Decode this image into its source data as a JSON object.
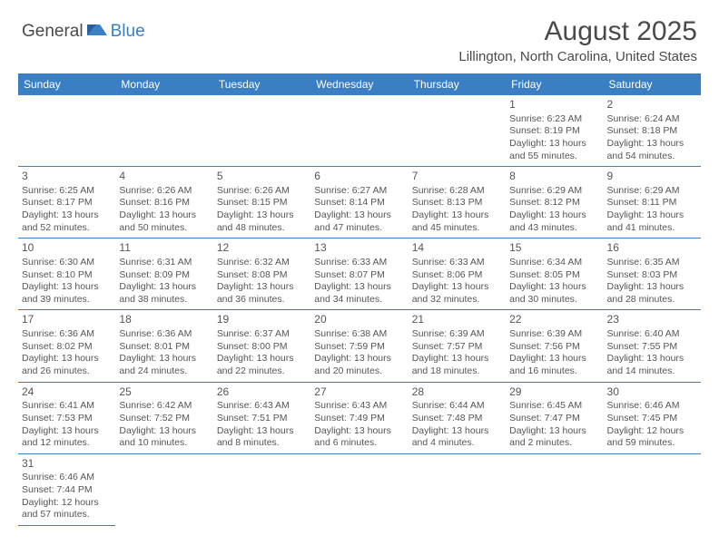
{
  "logo": {
    "text1": "General",
    "text2": "Blue"
  },
  "title": "August 2025",
  "location": "Lillington, North Carolina, United States",
  "colors": {
    "header_bg": "#3a7fc4",
    "border": "#3a7fc4",
    "text": "#4a4a4a"
  },
  "daynames": [
    "Sunday",
    "Monday",
    "Tuesday",
    "Wednesday",
    "Thursday",
    "Friday",
    "Saturday"
  ],
  "weeks": [
    [
      null,
      null,
      null,
      null,
      null,
      {
        "d": "1",
        "sr": "Sunrise: 6:23 AM",
        "ss": "Sunset: 8:19 PM",
        "dl1": "Daylight: 13 hours",
        "dl2": "and 55 minutes."
      },
      {
        "d": "2",
        "sr": "Sunrise: 6:24 AM",
        "ss": "Sunset: 8:18 PM",
        "dl1": "Daylight: 13 hours",
        "dl2": "and 54 minutes."
      }
    ],
    [
      {
        "d": "3",
        "sr": "Sunrise: 6:25 AM",
        "ss": "Sunset: 8:17 PM",
        "dl1": "Daylight: 13 hours",
        "dl2": "and 52 minutes."
      },
      {
        "d": "4",
        "sr": "Sunrise: 6:26 AM",
        "ss": "Sunset: 8:16 PM",
        "dl1": "Daylight: 13 hours",
        "dl2": "and 50 minutes."
      },
      {
        "d": "5",
        "sr": "Sunrise: 6:26 AM",
        "ss": "Sunset: 8:15 PM",
        "dl1": "Daylight: 13 hours",
        "dl2": "and 48 minutes."
      },
      {
        "d": "6",
        "sr": "Sunrise: 6:27 AM",
        "ss": "Sunset: 8:14 PM",
        "dl1": "Daylight: 13 hours",
        "dl2": "and 47 minutes."
      },
      {
        "d": "7",
        "sr": "Sunrise: 6:28 AM",
        "ss": "Sunset: 8:13 PM",
        "dl1": "Daylight: 13 hours",
        "dl2": "and 45 minutes."
      },
      {
        "d": "8",
        "sr": "Sunrise: 6:29 AM",
        "ss": "Sunset: 8:12 PM",
        "dl1": "Daylight: 13 hours",
        "dl2": "and 43 minutes."
      },
      {
        "d": "9",
        "sr": "Sunrise: 6:29 AM",
        "ss": "Sunset: 8:11 PM",
        "dl1": "Daylight: 13 hours",
        "dl2": "and 41 minutes."
      }
    ],
    [
      {
        "d": "10",
        "sr": "Sunrise: 6:30 AM",
        "ss": "Sunset: 8:10 PM",
        "dl1": "Daylight: 13 hours",
        "dl2": "and 39 minutes."
      },
      {
        "d": "11",
        "sr": "Sunrise: 6:31 AM",
        "ss": "Sunset: 8:09 PM",
        "dl1": "Daylight: 13 hours",
        "dl2": "and 38 minutes."
      },
      {
        "d": "12",
        "sr": "Sunrise: 6:32 AM",
        "ss": "Sunset: 8:08 PM",
        "dl1": "Daylight: 13 hours",
        "dl2": "and 36 minutes."
      },
      {
        "d": "13",
        "sr": "Sunrise: 6:33 AM",
        "ss": "Sunset: 8:07 PM",
        "dl1": "Daylight: 13 hours",
        "dl2": "and 34 minutes."
      },
      {
        "d": "14",
        "sr": "Sunrise: 6:33 AM",
        "ss": "Sunset: 8:06 PM",
        "dl1": "Daylight: 13 hours",
        "dl2": "and 32 minutes."
      },
      {
        "d": "15",
        "sr": "Sunrise: 6:34 AM",
        "ss": "Sunset: 8:05 PM",
        "dl1": "Daylight: 13 hours",
        "dl2": "and 30 minutes."
      },
      {
        "d": "16",
        "sr": "Sunrise: 6:35 AM",
        "ss": "Sunset: 8:03 PM",
        "dl1": "Daylight: 13 hours",
        "dl2": "and 28 minutes."
      }
    ],
    [
      {
        "d": "17",
        "sr": "Sunrise: 6:36 AM",
        "ss": "Sunset: 8:02 PM",
        "dl1": "Daylight: 13 hours",
        "dl2": "and 26 minutes."
      },
      {
        "d": "18",
        "sr": "Sunrise: 6:36 AM",
        "ss": "Sunset: 8:01 PM",
        "dl1": "Daylight: 13 hours",
        "dl2": "and 24 minutes."
      },
      {
        "d": "19",
        "sr": "Sunrise: 6:37 AM",
        "ss": "Sunset: 8:00 PM",
        "dl1": "Daylight: 13 hours",
        "dl2": "and 22 minutes."
      },
      {
        "d": "20",
        "sr": "Sunrise: 6:38 AM",
        "ss": "Sunset: 7:59 PM",
        "dl1": "Daylight: 13 hours",
        "dl2": "and 20 minutes."
      },
      {
        "d": "21",
        "sr": "Sunrise: 6:39 AM",
        "ss": "Sunset: 7:57 PM",
        "dl1": "Daylight: 13 hours",
        "dl2": "and 18 minutes."
      },
      {
        "d": "22",
        "sr": "Sunrise: 6:39 AM",
        "ss": "Sunset: 7:56 PM",
        "dl1": "Daylight: 13 hours",
        "dl2": "and 16 minutes."
      },
      {
        "d": "23",
        "sr": "Sunrise: 6:40 AM",
        "ss": "Sunset: 7:55 PM",
        "dl1": "Daylight: 13 hours",
        "dl2": "and 14 minutes."
      }
    ],
    [
      {
        "d": "24",
        "sr": "Sunrise: 6:41 AM",
        "ss": "Sunset: 7:53 PM",
        "dl1": "Daylight: 13 hours",
        "dl2": "and 12 minutes."
      },
      {
        "d": "25",
        "sr": "Sunrise: 6:42 AM",
        "ss": "Sunset: 7:52 PM",
        "dl1": "Daylight: 13 hours",
        "dl2": "and 10 minutes."
      },
      {
        "d": "26",
        "sr": "Sunrise: 6:43 AM",
        "ss": "Sunset: 7:51 PM",
        "dl1": "Daylight: 13 hours",
        "dl2": "and 8 minutes."
      },
      {
        "d": "27",
        "sr": "Sunrise: 6:43 AM",
        "ss": "Sunset: 7:49 PM",
        "dl1": "Daylight: 13 hours",
        "dl2": "and 6 minutes."
      },
      {
        "d": "28",
        "sr": "Sunrise: 6:44 AM",
        "ss": "Sunset: 7:48 PM",
        "dl1": "Daylight: 13 hours",
        "dl2": "and 4 minutes."
      },
      {
        "d": "29",
        "sr": "Sunrise: 6:45 AM",
        "ss": "Sunset: 7:47 PM",
        "dl1": "Daylight: 13 hours",
        "dl2": "and 2 minutes."
      },
      {
        "d": "30",
        "sr": "Sunrise: 6:46 AM",
        "ss": "Sunset: 7:45 PM",
        "dl1": "Daylight: 12 hours",
        "dl2": "and 59 minutes."
      }
    ],
    [
      {
        "d": "31",
        "sr": "Sunrise: 6:46 AM",
        "ss": "Sunset: 7:44 PM",
        "dl1": "Daylight: 12 hours",
        "dl2": "and 57 minutes."
      },
      null,
      null,
      null,
      null,
      null,
      null
    ]
  ]
}
